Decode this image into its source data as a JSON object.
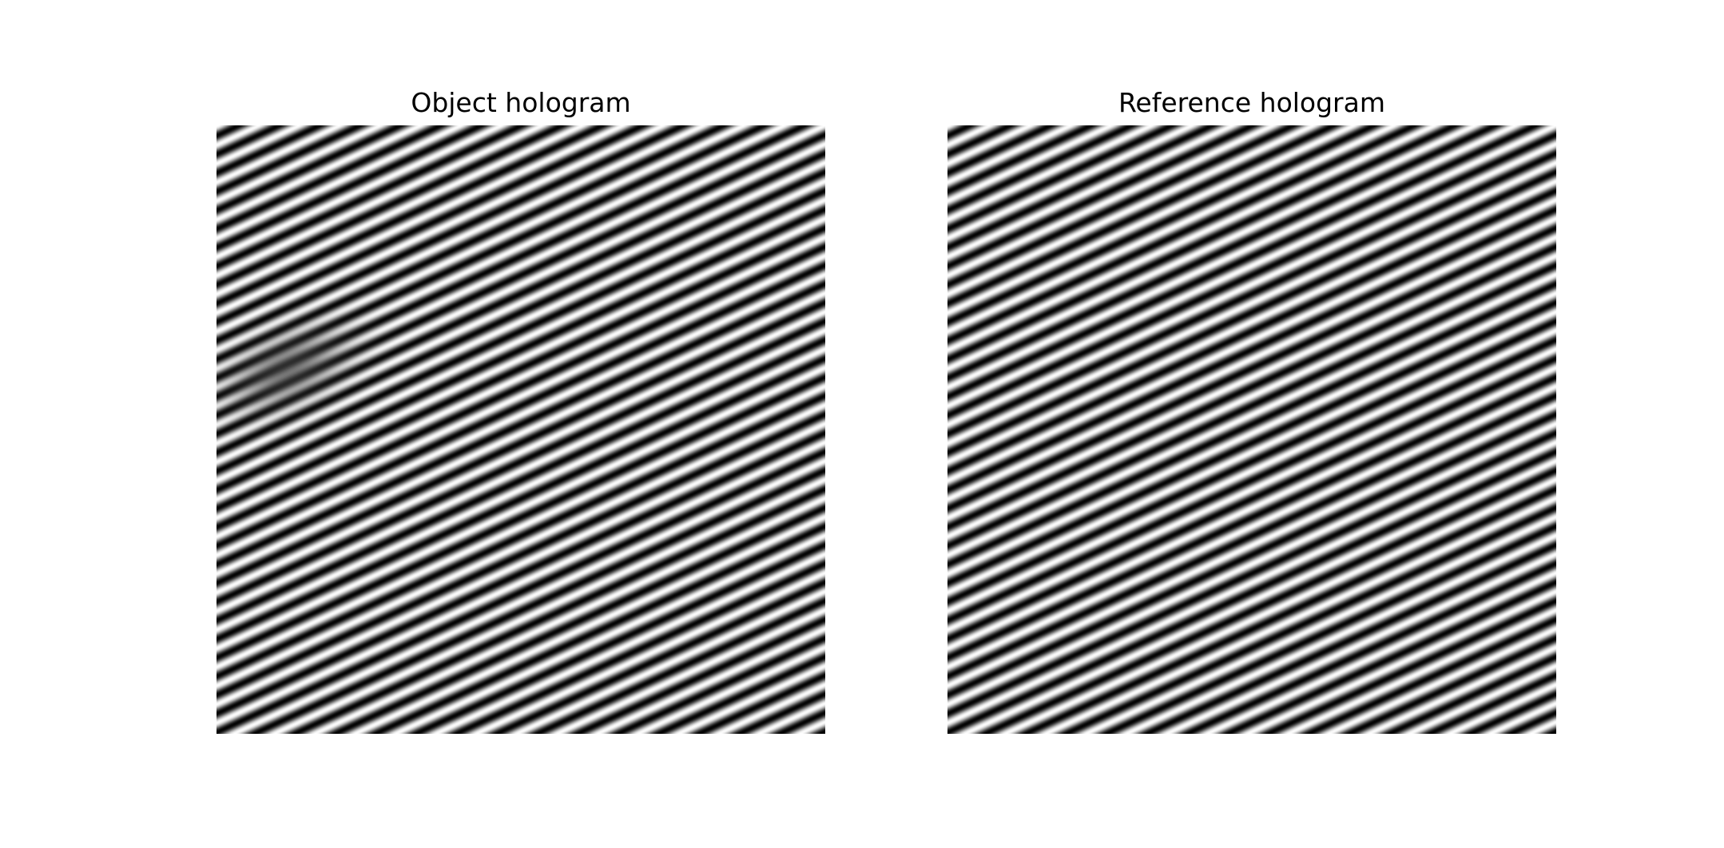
{
  "figure": {
    "panels": [
      {
        "title": "Object hologram",
        "colormap": "grayscale",
        "features": [
          "diagonal-interference-fringes",
          "dark-object-blob"
        ]
      },
      {
        "title": "Reference hologram",
        "colormap": "grayscale",
        "features": [
          "diagonal-interference-fringes"
        ]
      }
    ]
  }
}
